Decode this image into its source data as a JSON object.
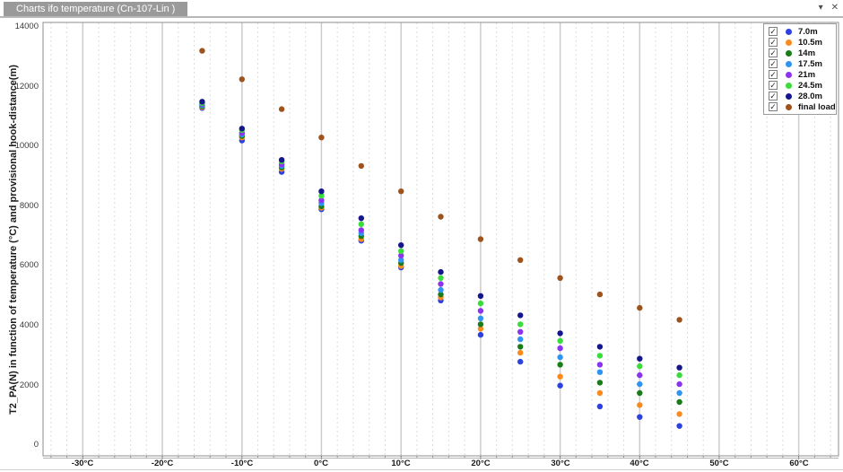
{
  "window": {
    "tab_title": "Charts ifo temperature (Cn-107-Lin )",
    "dropdown_icon": "▾",
    "close_icon": "✕"
  },
  "chart_data": {
    "type": "scatter",
    "y_axis_title": "T2_PA(N) in function of temperature (°C) and provisional hook-distance(m)",
    "x_tick_values": [
      -30,
      -20,
      -10,
      0,
      10,
      20,
      30,
      40,
      50,
      60
    ],
    "x_tick_labels": [
      "-30°C",
      "-20°C",
      "-10°C",
      "0°C",
      "10°C",
      "20°C",
      "30°C",
      "40°C",
      "50°C",
      "60°C"
    ],
    "y_tick_values": [
      0,
      2000,
      4000,
      6000,
      8000,
      10000,
      12000,
      14000
    ],
    "xlim": [
      -35,
      65
    ],
    "ylim": [
      -350,
      14150
    ],
    "minor_grid_step": 2,
    "grid": "vertical-only",
    "legend_position": "top-right",
    "legend_checkboxes_checked": true,
    "x": [
      -15,
      -10,
      -5,
      0,
      5,
      10,
      15,
      20,
      25,
      30,
      35,
      40,
      45
    ],
    "series": [
      {
        "name": "7.0m",
        "color": "#2c41e0",
        "values": [
          11290,
          10200,
          9150,
          7900,
          6850,
          5950,
          4850,
          3700,
          2800,
          2000,
          1300,
          950,
          650
        ]
      },
      {
        "name": "10.5m",
        "color": "#fb8a1c",
        "values": [
          11320,
          10300,
          9250,
          7950,
          6900,
          6000,
          4950,
          3900,
          3100,
          2300,
          1750,
          1350,
          1050
        ]
      },
      {
        "name": "14m",
        "color": "#187d18",
        "values": [
          11350,
          10350,
          9300,
          8000,
          7000,
          6100,
          5050,
          4050,
          3300,
          2700,
          2100,
          1750,
          1450
        ]
      },
      {
        "name": "17.5m",
        "color": "#2e94f2",
        "values": [
          11380,
          10400,
          9350,
          8100,
          7100,
          6200,
          5200,
          4250,
          3550,
          2950,
          2450,
          2050,
          1750
        ]
      },
      {
        "name": "21m",
        "color": "#8c33f0",
        "values": [
          11420,
          10450,
          9400,
          8200,
          7200,
          6350,
          5400,
          4500,
          3800,
          3250,
          2700,
          2350,
          2050
        ]
      },
      {
        "name": "24.5m",
        "color": "#39dc39",
        "values": [
          11450,
          10550,
          9500,
          8350,
          7400,
          6500,
          5600,
          4750,
          4050,
          3500,
          3000,
          2650,
          2350
        ]
      },
      {
        "name": "28.0m",
        "color": "#15158d",
        "values": [
          11500,
          10600,
          9550,
          8500,
          7600,
          6700,
          5800,
          5000,
          4350,
          3750,
          3300,
          2900,
          2600
        ]
      },
      {
        "name": "final load",
        "color": "#9e521c",
        "values": [
          13200,
          12250,
          11250,
          10300,
          9350,
          8500,
          7650,
          6900,
          6200,
          5600,
          5050,
          4600,
          4200
        ]
      }
    ]
  }
}
